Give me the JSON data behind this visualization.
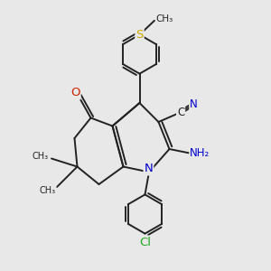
{
  "bg_color": "#e8e8e8",
  "bond_color": "#222222",
  "bond_width": 1.4,
  "atom_colors": {
    "N": "#0000cc",
    "O": "#cc2200",
    "S": "#ccaa00",
    "Cl": "#22aa22",
    "C": "#222222",
    "H": "#888888"
  },
  "font_size": 8.5,
  "fig_size": [
    3.0,
    3.0
  ],
  "dpi": 100,
  "xlim": [
    0,
    10
  ],
  "ylim": [
    0,
    10
  ]
}
